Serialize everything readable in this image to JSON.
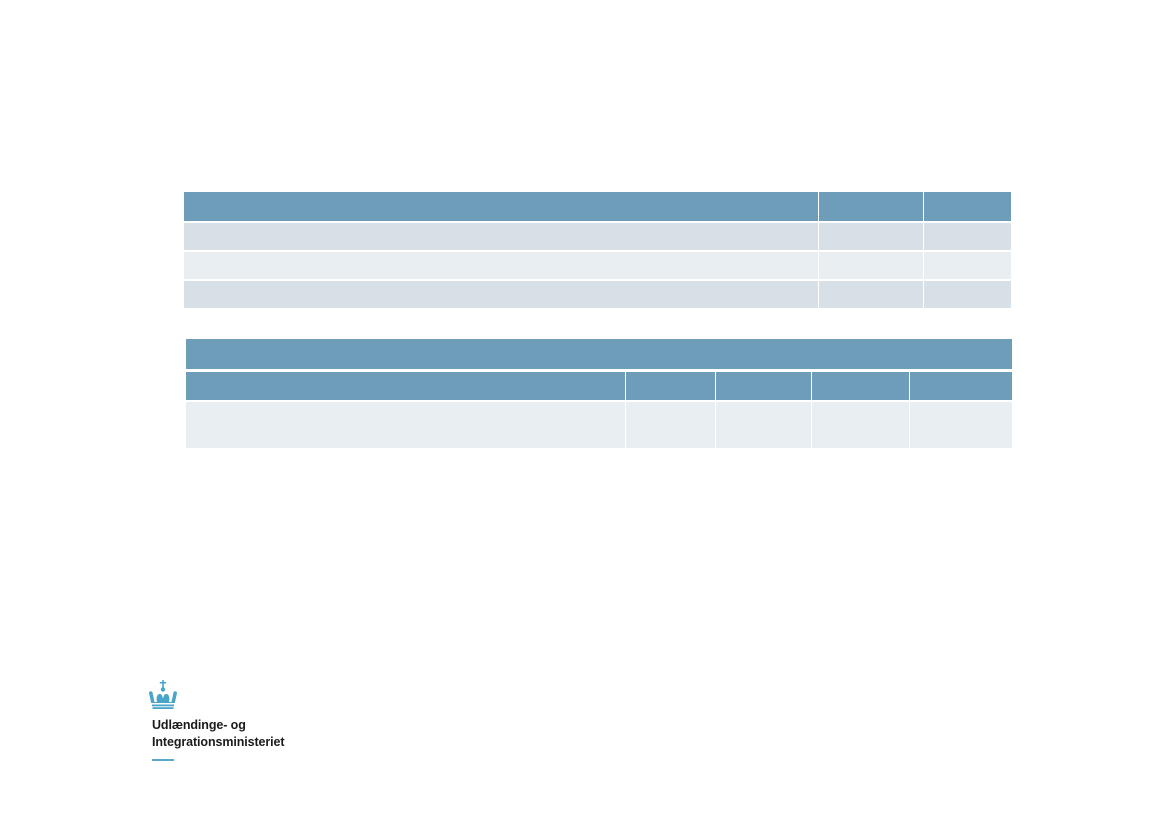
{
  "organization": {
    "name_line_1": "Udlændinge- og",
    "name_line_2": "Integrationsministeriet",
    "logo_icon": "crown-icon",
    "accent_color": "#5aa9c9"
  },
  "colors": {
    "header": "#6d9db8",
    "row_dark": "#d6e0e6",
    "row_light": "#e9eef2"
  },
  "table_1": {
    "columns": [
      "",
      "",
      ""
    ],
    "rows": [
      [
        "",
        "",
        ""
      ],
      [
        "",
        "",
        ""
      ],
      [
        "",
        "",
        ""
      ]
    ]
  },
  "table_2": {
    "title": "",
    "columns": [
      "",
      "",
      "",
      "",
      ""
    ],
    "rows": [
      [
        "",
        "",
        "",
        "",
        ""
      ]
    ]
  }
}
